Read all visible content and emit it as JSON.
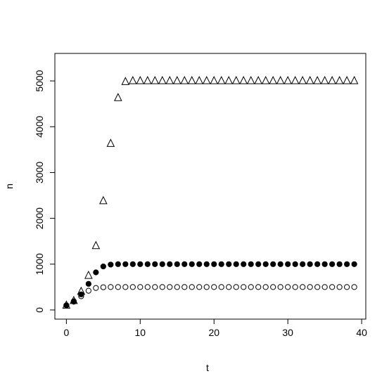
{
  "chart_data": {
    "type": "scatter",
    "title": "",
    "xlabel": "t",
    "ylabel": "n",
    "xlim": [
      -1.56,
      40.56
    ],
    "ylim": [
      -200,
      5600
    ],
    "xticks": [
      0,
      10,
      20,
      30,
      40
    ],
    "yticks": [
      0,
      1000,
      2000,
      3000,
      4000,
      5000
    ],
    "grid": false,
    "legend": "none",
    "series": [
      {
        "marker": "open-triangle",
        "x": [
          0,
          1,
          2,
          3,
          4,
          5,
          6,
          7,
          8,
          9,
          10,
          11,
          12,
          13,
          14,
          15,
          16,
          17,
          18,
          19,
          20,
          21,
          22,
          23,
          24,
          25,
          26,
          27,
          28,
          29,
          30,
          31,
          32,
          33,
          34,
          35,
          36,
          37,
          38,
          39
        ],
        "y": [
          100,
          200,
          400,
          750,
          1400,
          2380,
          3630,
          4630,
          4980,
          5000,
          5000,
          5000,
          5000,
          5000,
          5000,
          5000,
          5000,
          5000,
          5000,
          5000,
          5000,
          5000,
          5000,
          5000,
          5000,
          5000,
          5000,
          5000,
          5000,
          5000,
          5000,
          5000,
          5000,
          5000,
          5000,
          5000,
          5000,
          5000,
          5000,
          5000
        ]
      },
      {
        "marker": "filled-circle",
        "x": [
          0,
          1,
          2,
          3,
          4,
          5,
          6,
          7,
          8,
          9,
          10,
          11,
          12,
          13,
          14,
          15,
          16,
          17,
          18,
          19,
          20,
          21,
          22,
          23,
          24,
          25,
          26,
          27,
          28,
          29,
          30,
          31,
          32,
          33,
          34,
          35,
          36,
          37,
          38,
          39
        ],
        "y": [
          100,
          190,
          340,
          570,
          820,
          950,
          990,
          1000,
          1000,
          1000,
          1000,
          1000,
          1000,
          1000,
          1000,
          1000,
          1000,
          1000,
          1000,
          1000,
          1000,
          1000,
          1000,
          1000,
          1000,
          1000,
          1000,
          1000,
          1000,
          1000,
          1000,
          1000,
          1000,
          1000,
          1000,
          1000,
          1000,
          1000,
          1000,
          1000
        ]
      },
      {
        "marker": "open-circle",
        "x": [
          0,
          1,
          2,
          3,
          4,
          5,
          6,
          7,
          8,
          9,
          10,
          11,
          12,
          13,
          14,
          15,
          16,
          17,
          18,
          19,
          20,
          21,
          22,
          23,
          24,
          25,
          26,
          27,
          28,
          29,
          30,
          31,
          32,
          33,
          34,
          35,
          36,
          37,
          38,
          39
        ],
        "y": [
          100,
          180,
          300,
          420,
          480,
          495,
          500,
          500,
          500,
          500,
          500,
          500,
          500,
          500,
          500,
          500,
          500,
          500,
          500,
          500,
          500,
          500,
          500,
          500,
          500,
          500,
          500,
          500,
          500,
          500,
          500,
          500,
          500,
          500,
          500,
          500,
          500,
          500,
          500,
          500
        ]
      }
    ]
  }
}
